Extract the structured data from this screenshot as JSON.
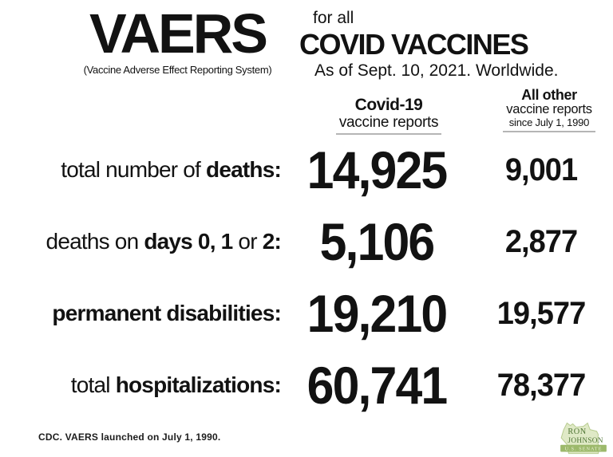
{
  "header": {
    "title": "VAERS",
    "subtitle": "(Vaccine Adverse Effect Reporting System)",
    "scope_prefix": "for all",
    "scope_title": "COVID VACCINES",
    "as_of": "As of Sept. 10, 2021. Worldwide."
  },
  "columns": {
    "covid": {
      "title": "Covid-19",
      "subtitle": "vaccine reports"
    },
    "other": {
      "title": "All other",
      "subtitle": "vaccine reports",
      "note": "since July 1, 1990"
    }
  },
  "rows": [
    {
      "label_parts": [
        {
          "t": "total number of ",
          "b": false
        },
        {
          "t": "deaths:",
          "b": true
        }
      ],
      "covid": "14,925",
      "other": "9,001"
    },
    {
      "label_parts": [
        {
          "t": "deaths on ",
          "b": false
        },
        {
          "t": "days 0, 1",
          "b": true
        },
        {
          "t": " or ",
          "b": false
        },
        {
          "t": "2:",
          "b": true
        }
      ],
      "covid": "5,106",
      "other": "2,877"
    },
    {
      "label_parts": [
        {
          "t": "permanent disabilities:",
          "b": true
        }
      ],
      "covid": "19,210",
      "other": "19,577"
    },
    {
      "label_parts": [
        {
          "t": "total ",
          "b": false
        },
        {
          "t": "hospitalizations:",
          "b": true
        }
      ],
      "covid": "60,741",
      "other": "78,377"
    }
  ],
  "footer": {
    "note": "CDC. VAERS launched on July 1, 1990."
  },
  "logo": {
    "line1": "RON",
    "line2": "JOHNSON",
    "line3": "U.S. SENATE",
    "shape_fill": "#dfe9c6",
    "shape_stroke": "#b9cd92",
    "name_color": "#4e7433",
    "band_color": "#9cb96b",
    "band_text_color": "#eef3dc"
  },
  "chart_data": {
    "type": "table",
    "title": "VAERS for all COVID VACCINES — As of Sept. 10, 2021. Worldwide.",
    "columns": [
      "Covid-19 vaccine reports",
      "All other vaccine reports since July 1, 1990"
    ],
    "rows": [
      {
        "label": "total number of deaths",
        "covid19_vaccine_reports": 14925,
        "all_other_vaccine_reports": 9001
      },
      {
        "label": "deaths on days 0, 1 or 2",
        "covid19_vaccine_reports": 5106,
        "all_other_vaccine_reports": 2877
      },
      {
        "label": "permanent disabilities",
        "covid19_vaccine_reports": 19210,
        "all_other_vaccine_reports": 19577
      },
      {
        "label": "total hospitalizations",
        "covid19_vaccine_reports": 60741,
        "all_other_vaccine_reports": 78377
      }
    ],
    "footnote": "CDC. VAERS launched on July 1, 1990."
  }
}
